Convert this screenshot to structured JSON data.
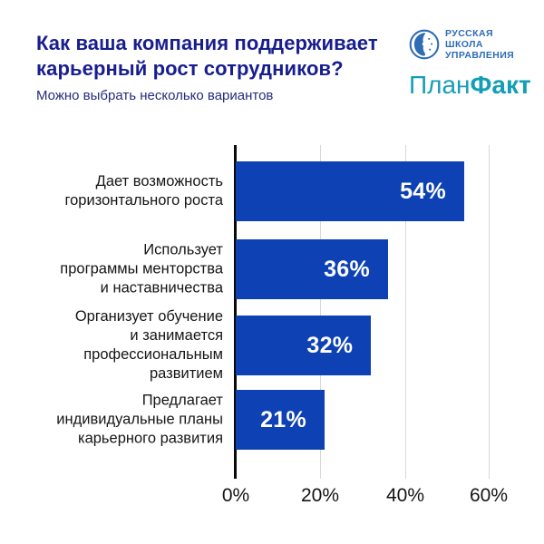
{
  "header": {
    "title": "Как ваша компания поддерживает карьерный рост сотрудников?",
    "subtitle": "Можно выбрать несколько вариантов"
  },
  "logos": {
    "rsm": {
      "lines": [
        "РУССКАЯ",
        "ШКОЛА",
        "УПРАВЛЕНИЯ"
      ],
      "color": "#2e6cb5"
    },
    "planfact": {
      "part1": "План",
      "part2": "Факт",
      "color": "#149eb6"
    }
  },
  "chart_data": {
    "type": "bar",
    "orientation": "horizontal",
    "title": "Как ваша компания поддерживает карьерный рост сотрудников?",
    "subtitle": "Можно выбрать несколько вариантов",
    "categories": [
      "Дает возможность горизонтального роста",
      "Использует программы менторства и наставничества",
      "Организует обучение и занимается профессиональным развитием",
      "Предлагает индивидуальные планы карьерного развития"
    ],
    "values": [
      54,
      36,
      32,
      21
    ],
    "xlabel": "",
    "ylabel": "",
    "xlim": [
      0,
      60
    ],
    "xticks": [
      "0%",
      "20%",
      "40%",
      "60%"
    ],
    "grid": "vertical",
    "bar_color": "#0e41b3",
    "value_label_color": "#ffffff",
    "rows": [
      {
        "lines": [
          "Дает возможность",
          "горизонтального роста"
        ],
        "value": 54,
        "display": "54%"
      },
      {
        "lines": [
          "Использует",
          "программы менторства",
          "и наставничества"
        ],
        "value": 36,
        "display": "36%"
      },
      {
        "lines": [
          "Организует обучение",
          "и занимается",
          "профессиональным",
          "развитием"
        ],
        "value": 32,
        "display": "32%"
      },
      {
        "lines": [
          "Предлагает",
          "индивидуальные планы",
          "карьерного развития"
        ],
        "value": 21,
        "display": "21%"
      }
    ]
  }
}
